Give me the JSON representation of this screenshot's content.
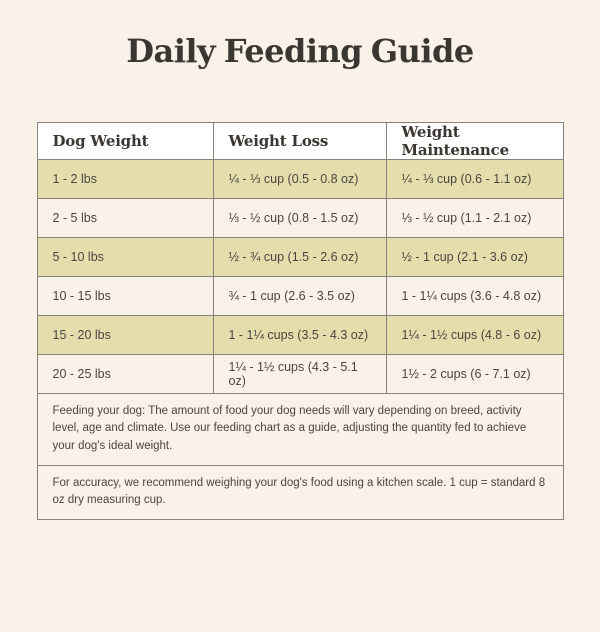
{
  "page": {
    "title": "Daily Feeding Guide"
  },
  "colors": {
    "page_background": "#FAF1E9",
    "header_row_background": "#FFFFFF",
    "alternate_row_background": "#E6DDAD",
    "table_border": "#87827A",
    "title_text": "#3A3631",
    "body_text": "#4A463F"
  },
  "table": {
    "headers": [
      "Dog Weight",
      "Weight Loss",
      "Weight Maintenance"
    ],
    "rows": [
      {
        "weight": "1 - 2 lbs",
        "loss": "¼ - ⅓ cup (0.5 - 0.8 oz)",
        "maintenance": "¼ - ⅓ cup (0.6 - 1.1 oz)"
      },
      {
        "weight": "2 - 5 lbs",
        "loss": "⅓ - ½ cup (0.8 - 1.5 oz)",
        "maintenance": "⅓ - ½ cup (1.1 - 2.1 oz)"
      },
      {
        "weight": "5 - 10 lbs",
        "loss": "½ - ¾ cup (1.5 - 2.6 oz)",
        "maintenance": "½ - 1 cup (2.1 - 3.6 oz)"
      },
      {
        "weight": "10 - 15 lbs",
        "loss": "¾ - 1 cup (2.6 - 3.5 oz)",
        "maintenance": "1 - 1¼ cups (3.6 - 4.8 oz)"
      },
      {
        "weight": "15 - 20 lbs",
        "loss": "1 - 1¼ cups (3.5 - 4.3 oz)",
        "maintenance": "1¼ - 1½ cups (4.8 - 6 oz)"
      },
      {
        "weight": "20 - 25 lbs",
        "loss": "1¼ - 1½ cups (4.3 - 5.1 oz)",
        "maintenance": "1½ - 2 cups (6 - 7.1 oz)"
      }
    ]
  },
  "notes": [
    {
      "text": "Feeding your dog: The amount of food your dog needs will vary depending on breed, activity level, age and climate. Use our feeding chart as a guide, adjusting the quantity fed to achieve your dog's ideal weight."
    },
    {
      "text": "For accuracy, we recommend weighing your dog's food using a kitchen scale. 1 cup = standard 8 oz dry measuring cup."
    }
  ]
}
